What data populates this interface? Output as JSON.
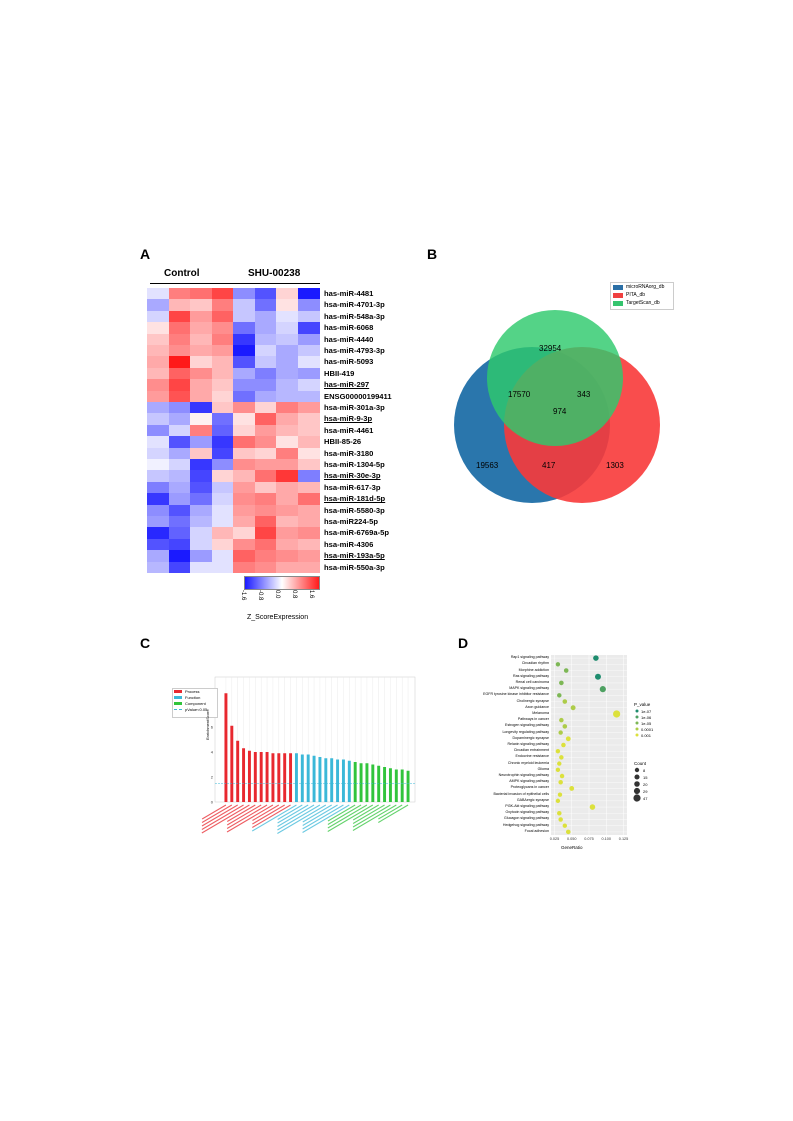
{
  "panels": {
    "a": "A",
    "b": "B",
    "c": "C",
    "d": "D"
  },
  "panel_a": {
    "group_control": "Control",
    "group_treatment": "SHU-00238",
    "rows": [
      {
        "label": "has-miR-4481",
        "underline": false,
        "v": [
          -0.2,
          0.9,
          1.0,
          1.3,
          -0.8,
          -1.2,
          0.3,
          -1.6
        ]
      },
      {
        "label": "hsa-miR-4701-3p",
        "underline": false,
        "v": [
          -0.6,
          0.5,
          0.4,
          0.9,
          -0.4,
          -1.0,
          0.2,
          -0.8
        ]
      },
      {
        "label": "has-miR-548a-3p",
        "underline": false,
        "v": [
          -0.3,
          1.3,
          0.7,
          1.1,
          -0.4,
          -0.6,
          -0.2,
          -0.4
        ]
      },
      {
        "label": "has-miR-6068",
        "underline": false,
        "v": [
          0.2,
          1.0,
          0.6,
          0.8,
          -1.0,
          -0.6,
          -0.3,
          -1.3
        ]
      },
      {
        "label": "has-miR-4440",
        "underline": false,
        "v": [
          0.4,
          0.9,
          0.5,
          0.9,
          -1.4,
          -0.5,
          -0.4,
          -0.7
        ]
      },
      {
        "label": "has-miR-4793-3p",
        "underline": false,
        "v": [
          0.5,
          0.8,
          0.6,
          0.7,
          -1.6,
          -0.3,
          -0.6,
          -0.4
        ]
      },
      {
        "label": "has-miR-5093",
        "underline": false,
        "v": [
          0.6,
          1.6,
          0.3,
          0.5,
          -1.2,
          -0.4,
          -0.6,
          -0.2
        ]
      },
      {
        "label": "HBII-419",
        "underline": false,
        "v": [
          0.5,
          1.1,
          0.8,
          0.5,
          -0.6,
          -0.9,
          -0.6,
          -0.7
        ]
      },
      {
        "label": "has-miR-297",
        "underline": true,
        "v": [
          0.8,
          1.3,
          0.6,
          0.4,
          -0.8,
          -0.8,
          -0.5,
          -0.3
        ]
      },
      {
        "label": "ENSG00000199411",
        "underline": false,
        "v": [
          0.7,
          1.2,
          0.6,
          0.3,
          -1.0,
          -0.6,
          -0.5,
          -0.5
        ]
      },
      {
        "label": "hsa-miR-301a-3p",
        "underline": false,
        "v": [
          -0.6,
          -0.8,
          -1.4,
          0.4,
          0.8,
          0.3,
          0.9,
          0.7
        ]
      },
      {
        "label": "hsa-miR-9-3p",
        "underline": true,
        "v": [
          -0.4,
          -0.6,
          0.1,
          -1.0,
          0.2,
          1.1,
          0.6,
          0.4
        ]
      },
      {
        "label": "hsa-miR-4461",
        "underline": false,
        "v": [
          -0.8,
          -0.3,
          0.9,
          -1.1,
          0.3,
          0.7,
          0.5,
          0.4
        ]
      },
      {
        "label": "HBII-85-26",
        "underline": false,
        "v": [
          -0.2,
          -1.2,
          -0.7,
          -1.4,
          1.0,
          0.8,
          0.2,
          0.5
        ]
      },
      {
        "label": "hsa-miR-3180",
        "underline": false,
        "v": [
          -0.3,
          -0.6,
          0.4,
          -1.3,
          0.4,
          0.3,
          0.9,
          0.2
        ]
      },
      {
        "label": "hsa-miR-1304-5p",
        "underline": false,
        "v": [
          -0.1,
          -0.3,
          -1.4,
          -0.8,
          0.8,
          0.7,
          0.7,
          0.4
        ]
      },
      {
        "label": "hsa-miR-30e-3p",
        "underline": true,
        "v": [
          -0.4,
          -0.5,
          -1.3,
          0.3,
          0.5,
          1.0,
          1.4,
          -0.9
        ]
      },
      {
        "label": "hsa-miR-617-3p",
        "underline": false,
        "v": [
          -0.9,
          -0.6,
          -1.2,
          -0.4,
          0.7,
          0.4,
          0.6,
          0.5
        ]
      },
      {
        "label": "hsa-miR-181d-5p",
        "underline": true,
        "v": [
          -1.4,
          -0.7,
          -1.0,
          -0.3,
          0.8,
          0.9,
          0.6,
          1.0
        ]
      },
      {
        "label": "hsa-miR-5580-3p",
        "underline": false,
        "v": [
          -0.8,
          -1.2,
          -0.6,
          -0.2,
          0.7,
          0.8,
          0.7,
          0.6
        ]
      },
      {
        "label": "hsa-miR224-5p",
        "underline": false,
        "v": [
          -0.7,
          -1.0,
          -0.5,
          -0.2,
          0.6,
          1.1,
          0.5,
          0.6
        ]
      },
      {
        "label": "hsa-miR-6769a-5p",
        "underline": false,
        "v": [
          -1.5,
          -1.1,
          -0.3,
          0.5,
          0.3,
          1.3,
          0.7,
          0.8
        ]
      },
      {
        "label": "hsa-miR-4306",
        "underline": false,
        "v": [
          -1.2,
          -1.3,
          -0.3,
          0.3,
          0.8,
          1.0,
          0.6,
          0.5
        ]
      },
      {
        "label": "hsa-miR-193a-5p",
        "underline": true,
        "v": [
          -0.6,
          -1.6,
          -0.7,
          -0.2,
          1.1,
          0.9,
          0.8,
          0.7
        ]
      },
      {
        "label": "hsa-miR-550a-3p",
        "underline": false,
        "v": [
          -0.5,
          -1.3,
          -0.2,
          -0.2,
          0.9,
          0.8,
          0.6,
          0.6
        ]
      }
    ],
    "colorbar": {
      "ticks": [
        "-1.6",
        "-0.8",
        "0.0",
        "0.8",
        "1.6"
      ],
      "title": "Z_ScoreExpression"
    }
  },
  "panel_b": {
    "legend": [
      {
        "name": "microRNAorg_db",
        "color": "#2b6fa6"
      },
      {
        "name": "PITA_db",
        "color": "#f04040"
      },
      {
        "name": "TargetScan_db",
        "color": "#35c46e"
      }
    ],
    "regions": {
      "target_only": "32954",
      "mirna_only": "19563",
      "pita_only": "1303",
      "target_mirna": "17570",
      "target_pita": "343",
      "mirna_pita": "417",
      "all": "974"
    }
  },
  "chart_data": [
    {
      "type": "bar",
      "title": "",
      "xlabel": "",
      "ylabel": "EnrichmentScore",
      "ylim": [
        0,
        10
      ],
      "yticks": [
        "0",
        "2",
        "4",
        "6",
        "8"
      ],
      "legend": [
        {
          "name": "Process",
          "color": "#e8282f"
        },
        {
          "name": "Function",
          "color": "#3bb8d8"
        },
        {
          "name": "Component",
          "color": "#31c43c"
        },
        {
          "name": "pValue<0.05",
          "color": "#3bb8d8"
        }
      ],
      "series": [
        {
          "name": "Process",
          "color": "#e8282f",
          "values": [
            8.7,
            6.1,
            4.9,
            4.3,
            4.1,
            4.0,
            4.0,
            4.0,
            3.9,
            3.9,
            3.9,
            3.9
          ]
        },
        {
          "name": "Function",
          "color": "#3bb8d8",
          "values": [
            3.9,
            3.8,
            3.8,
            3.7,
            3.6,
            3.5,
            3.5,
            3.4,
            3.4,
            3.3
          ]
        },
        {
          "name": "Component",
          "color": "#31c43c",
          "values": [
            3.2,
            3.1,
            3.1,
            3.0,
            2.9,
            2.8,
            2.7,
            2.6,
            2.6,
            2.5
          ]
        }
      ]
    },
    {
      "type": "scatter",
      "title": "",
      "xlabel": "GeneRatio",
      "ylabel": "",
      "xlim": [
        0.02,
        0.13
      ],
      "xticks": [
        "0.025",
        "0.050",
        "0.075",
        "0.100",
        "0.125"
      ],
      "categories": [
        "Rap1 signaling pathway",
        "Circadian rhythm",
        "Morphine addiction",
        "Ras signaling pathway",
        "Renal cell carcinoma",
        "MAPK signaling pathway",
        "EGFR tyrosine kinase inhibitor resistance",
        "Cholinergic synapse",
        "Axon guidance",
        "Melanoma",
        "Pathways in cancer",
        "Estrogen signaling pathway",
        "Longevity regulating pathway",
        "Dopaminergic synapse",
        "Relaxin signaling pathway",
        "Circadian entrainment",
        "Endocrine resistance",
        "Chronic myeloid leukemia",
        "Glioma",
        "Neurotrophin signaling pathway",
        "AMPK signaling pathway",
        "Proteoglycans in cancer",
        "Bacterial invasion of epithelial cells",
        "GABAergic synapse",
        "PI3K-Akt signaling pathway",
        "Oxytocin signaling pathway",
        "Glucagon signaling pathway",
        "Hedgehog signaling pathway",
        "Focal adhesion"
      ],
      "x": [
        0.085,
        0.03,
        0.042,
        0.088,
        0.035,
        0.095,
        0.032,
        0.04,
        0.052,
        0.115,
        0.035,
        0.04,
        0.034,
        0.045,
        0.038,
        0.03,
        0.035,
        0.032,
        0.03,
        0.036,
        0.034,
        0.05,
        0.033,
        0.03,
        0.08,
        0.032,
        0.034,
        0.04,
        0.045
      ],
      "size": [
        20,
        8,
        10,
        26,
        10,
        29,
        9,
        10,
        13,
        47,
        9,
        10,
        8,
        12,
        9,
        8,
        9,
        8,
        8,
        9,
        9,
        12,
        8,
        8,
        20,
        9,
        9,
        8,
        10
      ],
      "p_value": [
        1e-07,
        1e-05,
        1e-05,
        1e-07,
        1e-05,
        1e-06,
        1e-05,
        0.0001,
        0.0001,
        0.001,
        0.0001,
        0.0001,
        0.0001,
        0.001,
        0.001,
        0.001,
        0.001,
        0.001,
        0.001,
        0.001,
        0.001,
        0.001,
        0.001,
        0.001,
        0.001,
        0.001,
        0.001,
        0.001,
        0.001
      ],
      "legend_pvalue_title": "P_value",
      "legend_pvalue": [
        "1e-07",
        "1e-06",
        "1e-05",
        "0.0001",
        "0.001"
      ],
      "legend_count_title": "Count",
      "legend_count": [
        "8",
        "15",
        "20",
        "29",
        "47"
      ]
    }
  ]
}
